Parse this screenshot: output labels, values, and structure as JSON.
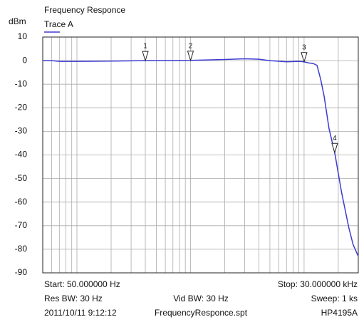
{
  "chart_data": {
    "type": "line",
    "title": "Frequency Responce",
    "y_label": "dBm",
    "x_scale": "log",
    "xlim": [
      50,
      30000
    ],
    "ylim": [
      -90,
      10
    ],
    "yticks": [
      10,
      0,
      -10,
      -20,
      -30,
      -40,
      -50,
      -60,
      -70,
      -80,
      -90
    ],
    "xgrid": [
      60,
      70,
      80,
      90,
      100,
      200,
      300,
      400,
      500,
      600,
      700,
      800,
      900,
      1000,
      2000,
      3000,
      4000,
      5000,
      6000,
      7000,
      8000,
      9000,
      10000,
      20000
    ],
    "grid": true,
    "x": [
      50,
      60,
      70,
      100,
      200,
      400,
      1000,
      2000,
      3000,
      4000,
      5000,
      7000,
      9000,
      10000,
      11000,
      12000,
      13000,
      14000,
      15000,
      16600,
      18600,
      21400,
      24800,
      27000,
      30000
    ],
    "series": [
      {
        "name": "Trace A",
        "color": "#3c3cd2",
        "values": [
          0,
          0,
          -0.3,
          -0.3,
          -0.2,
          0,
          0.1,
          0.5,
          0.8,
          0.6,
          0,
          -0.5,
          -0.3,
          -0.5,
          -1,
          -1.2,
          -2,
          -8,
          -15,
          -29,
          -39,
          -56,
          -71,
          -78,
          -83
        ]
      }
    ],
    "markers": [
      {
        "label": "1",
        "x": 400,
        "y": 0
      },
      {
        "label": "2",
        "x": 1000,
        "y": 0.1
      },
      {
        "label": "3",
        "x": 10000,
        "y": -0.5
      },
      {
        "label": "4",
        "x": 18600,
        "y": -39
      }
    ],
    "footer": [
      [
        "Start: 50.000000 Hz",
        "Stop: 30.000000 kHz"
      ],
      [
        "Res BW: 30 Hz",
        "Vid BW: 30 Hz",
        "Sweep: 1 ks"
      ],
      [
        "2011/10/11 9:12:12",
        "FrequencyResponce.spt",
        "HP4195A"
      ]
    ]
  }
}
